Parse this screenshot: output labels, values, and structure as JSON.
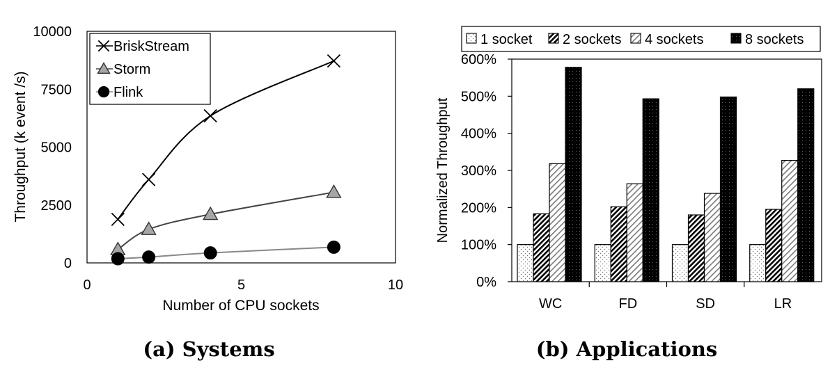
{
  "chart_data": [
    {
      "type": "line",
      "caption": "(a) Systems",
      "xlabel": "Number of CPU sockets",
      "ylabel": "Throughput (k event /s)",
      "xlim": [
        0,
        10
      ],
      "ylim": [
        0,
        10000
      ],
      "xticks": [
        "0",
        "5",
        "10"
      ],
      "yticks": [
        "0",
        "2500",
        "5000",
        "7500",
        "10000"
      ],
      "legend_position": "top-left",
      "grid": false,
      "series": [
        {
          "name": "BriskStream",
          "marker": "x",
          "color": "#000000",
          "x": [
            1,
            2,
            4,
            8
          ],
          "y": [
            1880,
            3600,
            6350,
            8720
          ]
        },
        {
          "name": "Storm",
          "marker": "triangle",
          "color": "#444444",
          "x": [
            1,
            2,
            4,
            8
          ],
          "y": [
            580,
            1450,
            2100,
            3050
          ]
        },
        {
          "name": "Flink",
          "marker": "circle",
          "color": "#888888",
          "x": [
            1,
            2,
            4,
            8
          ],
          "y": [
            180,
            250,
            430,
            680
          ]
        }
      ]
    },
    {
      "type": "bar",
      "caption": "(b) Applications",
      "ylabel": "Normalized Throughput",
      "ylim": [
        0,
        600
      ],
      "yticks": [
        "0%",
        "100%",
        "200%",
        "300%",
        "400%",
        "500%",
        "600%"
      ],
      "categories": [
        "WC",
        "FD",
        "SD",
        "LR"
      ],
      "legend_position": "top",
      "grid": false,
      "series": [
        {
          "name": "1 socket",
          "pattern": "dots",
          "values": [
            100,
            100,
            100,
            100
          ]
        },
        {
          "name": "2 sockets",
          "pattern": "dense-diagonal",
          "values": [
            183,
            202,
            180,
            195
          ]
        },
        {
          "name": "4 sockets",
          "pattern": "light-diagonal",
          "values": [
            318,
            264,
            238,
            327
          ]
        },
        {
          "name": "8 sockets",
          "pattern": "black-dots",
          "values": [
            578,
            493,
            498,
            520
          ]
        }
      ]
    }
  ]
}
